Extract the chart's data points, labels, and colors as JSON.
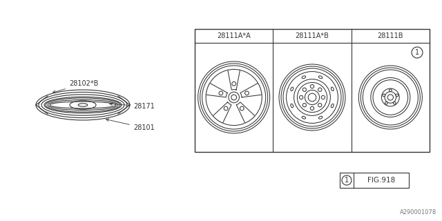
{
  "line_color": "#333333",
  "part_labels": [
    "28101",
    "28171",
    "28102*B"
  ],
  "wheel_labels": [
    "28111A*A",
    "28111A*B",
    "28111B"
  ],
  "fig_label": "FIG.918",
  "callout_num": "1",
  "watermark": "A290001078"
}
